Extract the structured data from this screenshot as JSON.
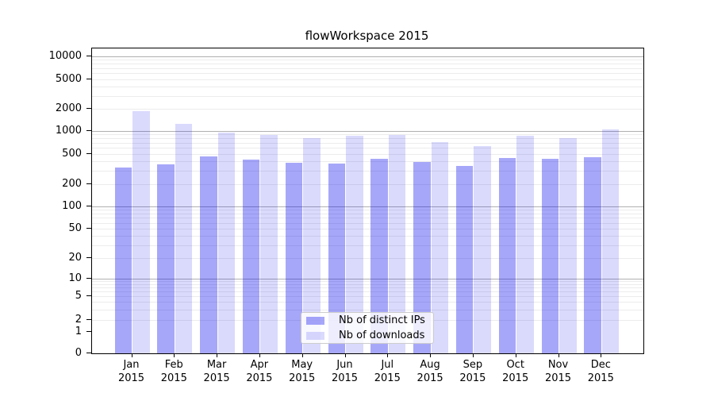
{
  "title": "flowWorkspace 2015",
  "y_axis": {
    "tick_labels": [
      "10000",
      "5000",
      "2000",
      "1000",
      "500",
      "200",
      "100",
      "50",
      "20",
      "10",
      "5",
      "2",
      "1",
      "0"
    ]
  },
  "x_axis": {
    "year": "2015"
  },
  "legend": {
    "items": [
      {
        "label": "Nb of distinct IPs",
        "color": "rgba(0,0,238,0.345)"
      },
      {
        "label": "Nb of downloads",
        "color": "rgba(0,0,238,0.145)"
      }
    ]
  },
  "colors": {
    "bar_dark": "rgba(0,0,238,0.345)",
    "bar_light": "rgba(0,0,238,0.145)",
    "grid_major": "#b0b0b0",
    "grid_minor": "#ececec",
    "axis": "#000000"
  },
  "chart_data": {
    "type": "bar",
    "title": "flowWorkspace 2015",
    "categories": [
      "Jan",
      "Feb",
      "Mar",
      "Apr",
      "May",
      "Jun",
      "Jul",
      "Aug",
      "Sep",
      "Oct",
      "Nov",
      "Dec"
    ],
    "category_year": "2015",
    "series": [
      {
        "name": "Nb of distinct IPs",
        "color": "rgba(0,0,238,0.345)",
        "values": [
          330,
          365,
          465,
          425,
          385,
          370,
          430,
          390,
          350,
          440,
          430,
          450
        ]
      },
      {
        "name": "Nb of downloads",
        "color": "rgba(0,0,238,0.145)",
        "values": [
          1840,
          1250,
          960,
          885,
          815,
          870,
          885,
          710,
          640,
          860,
          800,
          1060
        ]
      }
    ],
    "xlabel": "",
    "ylabel": "",
    "y_scale": "log-with-zero",
    "y_ticks": [
      0,
      1,
      2,
      5,
      10,
      20,
      50,
      100,
      200,
      500,
      1000,
      2000,
      5000,
      10000
    ],
    "ylim": [
      0,
      10000
    ],
    "grid": true,
    "legend_position": "bottom-center"
  }
}
